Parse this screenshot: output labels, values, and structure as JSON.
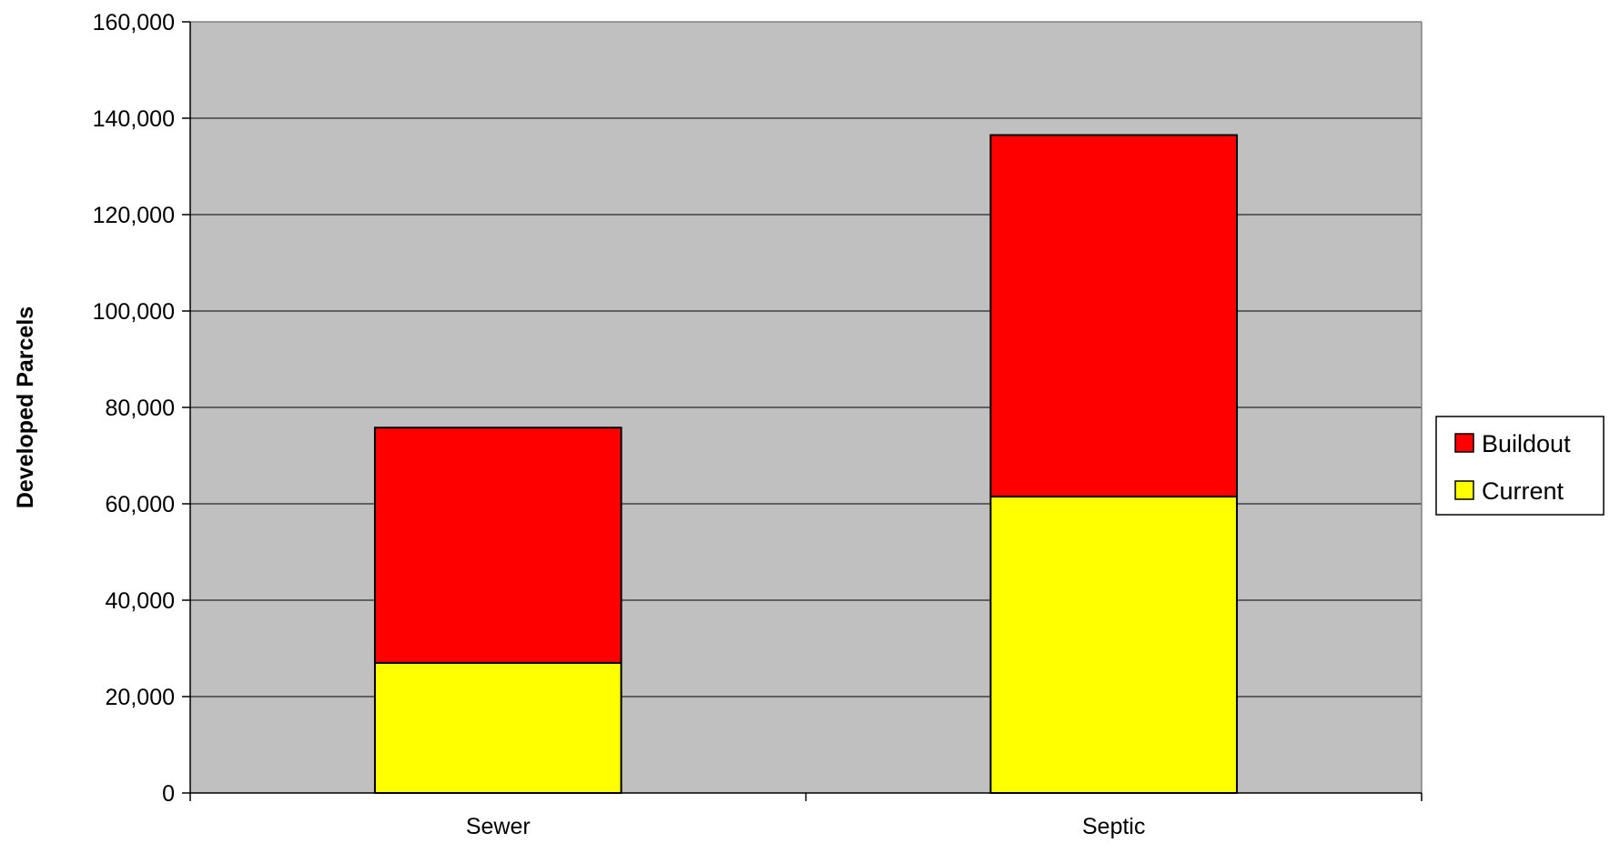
{
  "chart_data": {
    "type": "bar",
    "stacked": true,
    "title": "",
    "xlabel": "",
    "ylabel": "Developed Parcels",
    "categories": [
      "Sewer",
      "Septic"
    ],
    "series": [
      {
        "name": "Current",
        "values": [
          27000,
          61500
        ]
      },
      {
        "name": "Buildout",
        "values": [
          48800,
          75000
        ]
      }
    ],
    "ylim": [
      0,
      160000
    ],
    "yticks": [
      0,
      20000,
      40000,
      60000,
      80000,
      100000,
      120000,
      140000,
      160000
    ],
    "ytick_labels": [
      "0",
      "20,000",
      "40,000",
      "60,000",
      "80,000",
      "100,000",
      "120,000",
      "140,000",
      "160,000"
    ],
    "grid": true,
    "legend_position": "right",
    "legend_order": [
      "Buildout",
      "Current"
    ],
    "colors": {
      "Current": "#ffff00",
      "Buildout": "#ff0000",
      "plot_background": "#c0c0c0",
      "gridline": "#000000",
      "bar_edge": "#000000"
    }
  }
}
